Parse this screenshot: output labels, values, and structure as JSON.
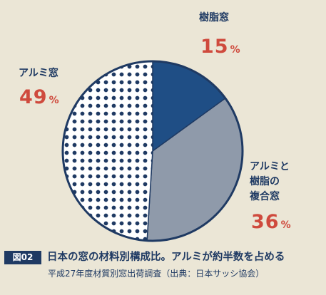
{
  "chart_data": {
    "type": "pie",
    "slices": [
      {
        "label": "樹脂窓",
        "value": 15,
        "color": "#1f4e85",
        "pattern": "solid"
      },
      {
        "label": "アルミと樹脂の複合窓",
        "label_lines": [
          "アルミと",
          "樹脂の",
          "複合窓"
        ],
        "value": 36,
        "color": "#8f9aaa",
        "pattern": "solid"
      },
      {
        "label": "アルミ窓",
        "value": 49,
        "color": "#1f3a63",
        "pattern": "dots"
      }
    ],
    "unit": "%"
  },
  "caption": {
    "badge": "図02",
    "title": "日本の窓の材料別構成比。アルミが約半数を占める",
    "source": "平成27年度材質別窓出荷調査（出典：日本サッシ協会）"
  }
}
